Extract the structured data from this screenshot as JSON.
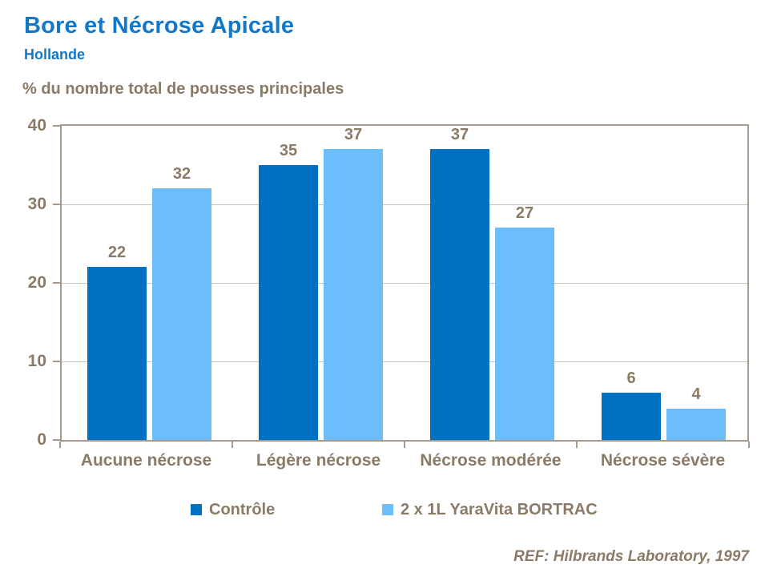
{
  "header": {
    "title": "Bore et Nécrose Apicale",
    "subtitle": "Hollande"
  },
  "footer": {
    "reference": "REF: Hilbrands Laboratory, 1997"
  },
  "colors": {
    "title_blue": "#1377C8",
    "text_brown": "#8A7A66",
    "axis_line": "#A59B8C",
    "gridline": "#C8C2B8",
    "series_controle": "#0070C0",
    "series_bortrac": "#6CBEFB"
  },
  "chart_data": {
    "type": "bar",
    "title": "Bore et Nécrose Apicale",
    "subtitle": "Hollande",
    "axis_title": "% du nombre total de pousses principales",
    "categories": [
      "Aucune nécrose",
      "Légère nécrose",
      "Nécrose modérée",
      "Nécrose sévère"
    ],
    "series": [
      {
        "name": "Contrôle",
        "color": "#0070C0",
        "values": [
          22,
          35,
          37,
          6
        ]
      },
      {
        "name": "2 x 1L YaraVita BORTRAC",
        "color": "#6CBEFB",
        "values": [
          32,
          37,
          27,
          4
        ]
      }
    ],
    "ylim": [
      0,
      40
    ],
    "yticks": [
      0,
      10,
      20,
      30,
      40
    ],
    "grid": true,
    "legend_position": "bottom",
    "reference": "REF: Hilbrands Laboratory, 1997"
  }
}
